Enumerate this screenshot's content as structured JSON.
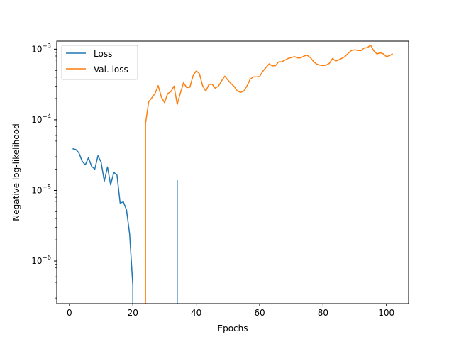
{
  "chart_data": {
    "type": "line",
    "xlabel": "Epochs",
    "ylabel": "Negative log-likelihood",
    "yscale": "log",
    "xlim": [
      -4,
      107
    ],
    "ylim": [
      2.5e-07,
      0.0013
    ],
    "grid": false,
    "legend_position": "upper-left",
    "x_ticks": [
      {
        "value": 0,
        "label": "0"
      },
      {
        "value": 20,
        "label": "20"
      },
      {
        "value": 40,
        "label": "40"
      },
      {
        "value": 60,
        "label": "60"
      },
      {
        "value": 80,
        "label": "80"
      },
      {
        "value": 100,
        "label": "100"
      }
    ],
    "y_ticks": [
      {
        "value": 1e-06,
        "base": "10",
        "exp": "−6"
      },
      {
        "value": 1e-05,
        "base": "10",
        "exp": "−5"
      },
      {
        "value": 0.0001,
        "base": "10",
        "exp": "−4"
      },
      {
        "value": 0.001,
        "base": "10",
        "exp": "−3"
      }
    ],
    "series": [
      {
        "name": "Loss",
        "color": "#1f77b4",
        "segments": [
          {
            "x": [
              1,
              2,
              3,
              4,
              5,
              6,
              7,
              8,
              9,
              10,
              11,
              12,
              13,
              14,
              15,
              16,
              17,
              18,
              19,
              20
            ],
            "y": [
              3.9e-05,
              3.8e-05,
              3.4e-05,
              2.6e-05,
              2.3e-05,
              2.9e-05,
              2.2e-05,
              2e-05,
              3.1e-05,
              2.5e-05,
              1.35e-05,
              2.15e-05,
              1.2e-05,
              1.8e-05,
              1.65e-05,
              6.6e-06,
              6.9e-06,
              5.3e-06,
              2.4e-06,
              4.5e-07
            ],
            "drop_to_bottom": true
          },
          {
            "x": [
              34
            ],
            "y": [
              1.38e-05
            ],
            "spike": true
          }
        ]
      },
      {
        "name": "Val. loss",
        "color": "#ff7f0e",
        "segments": [
          {
            "x": [
              24,
              25,
              26,
              27,
              28,
              29,
              30,
              31,
              32,
              33,
              34,
              35,
              36,
              37,
              38,
              39,
              40,
              41,
              42,
              43,
              44,
              45,
              46,
              47,
              48,
              49,
              50,
              51,
              52,
              53,
              54,
              55,
              56,
              57,
              58,
              59,
              60,
              61,
              62,
              63,
              64,
              65,
              66,
              67,
              68,
              69,
              70,
              71,
              72,
              73,
              74,
              75,
              76,
              77,
              78,
              79,
              80,
              81,
              82,
              83,
              84,
              85,
              86,
              87,
              88,
              89,
              90,
              91,
              92,
              93,
              94,
              95,
              96,
              97,
              98,
              99,
              100,
              101,
              102
            ],
            "y": [
              8.8e-05,
              0.00018,
              0.000205,
              0.000235,
              0.000305,
              0.00021,
              0.000175,
              0.000235,
              0.00025,
              0.0003,
              0.000165,
              0.00024,
              0.000335,
              0.000285,
              0.00029,
              0.00042,
              0.000495,
              0.00045,
              0.000305,
              0.000255,
              0.000315,
              0.00032,
              0.00028,
              0.0003,
              0.000355,
              0.000415,
              0.000365,
              0.000325,
              0.000295,
              0.000255,
              0.000245,
              0.000255,
              0.0003,
              0.000375,
              0.000405,
              0.000405,
              0.00041,
              0.000485,
              0.00055,
              0.00062,
              0.00058,
              0.000585,
              0.00066,
              0.000665,
              0.0007,
              0.00074,
              0.00076,
              0.000785,
              0.00075,
              0.000755,
              0.0008,
              0.00082,
              0.00076,
              0.00067,
              0.000615,
              0.000595,
              0.000585,
              0.000595,
              0.00063,
              0.00074,
              0.00068,
              0.000705,
              0.000745,
              0.00079,
              0.00088,
              0.00096,
              0.00098,
              0.00096,
              0.000955,
              0.00104,
              0.00105,
              0.00114,
              0.00095,
              0.000855,
              0.00089,
              0.00086,
              0.000785,
              0.00081,
              0.00086
            ],
            "rise_from_bottom": true
          }
        ]
      }
    ]
  }
}
